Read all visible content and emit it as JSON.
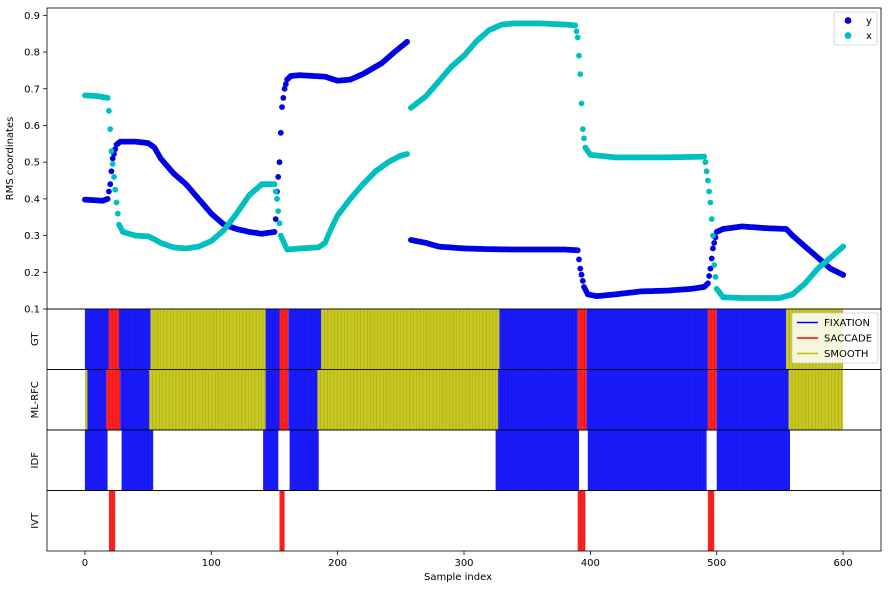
{
  "chart_data": {
    "type": "scatter",
    "xlabel": "Sample index",
    "xlim": [
      -30,
      630
    ],
    "x_ticks": [
      0,
      100,
      200,
      300,
      400,
      500,
      600
    ],
    "top_panel": {
      "ylabel": "RMS coordinates",
      "ylim": [
        0.1,
        0.92
      ],
      "y_ticks": [
        "0.1",
        "0.2",
        "0.3",
        "0.4",
        "0.5",
        "0.6",
        "0.7",
        "0.8",
        "0.9"
      ],
      "legend_position": "top-right",
      "series": [
        {
          "name": "y",
          "color": "#0000e6",
          "anchors": [
            [
              0,
              0.398
            ],
            [
              14,
              0.395
            ],
            [
              18,
              0.4
            ],
            [
              20,
              0.44
            ],
            [
              22,
              0.51
            ],
            [
              25,
              0.548
            ],
            [
              28,
              0.556
            ],
            [
              40,
              0.556
            ],
            [
              50,
              0.552
            ],
            [
              55,
              0.54
            ],
            [
              60,
              0.51
            ],
            [
              70,
              0.47
            ],
            [
              80,
              0.44
            ],
            [
              90,
              0.4
            ],
            [
              100,
              0.36
            ],
            [
              110,
              0.33
            ],
            [
              120,
              0.318
            ],
            [
              130,
              0.31
            ],
            [
              140,
              0.305
            ],
            [
              150,
              0.31
            ],
            [
              151,
              0.345
            ],
            [
              152,
              0.42
            ],
            [
              154,
              0.5
            ],
            [
              155,
              0.58
            ],
            [
              156,
              0.65
            ],
            [
              158,
              0.7
            ],
            [
              160,
              0.725
            ],
            [
              163,
              0.735
            ],
            [
              170,
              0.737
            ],
            [
              190,
              0.733
            ],
            [
              200,
              0.722
            ],
            [
              210,
              0.725
            ],
            [
              220,
              0.74
            ],
            [
              235,
              0.77
            ],
            [
              245,
              0.8
            ],
            [
              255,
              0.828
            ],
            [
              256,
              0.83
            ],
            [
              257,
              null
            ],
            [
              258,
              0.288
            ],
            [
              270,
              0.28
            ],
            [
              280,
              0.27
            ],
            [
              300,
              0.265
            ],
            [
              320,
              0.263
            ],
            [
              340,
              0.262
            ],
            [
              360,
              0.262
            ],
            [
              380,
              0.262
            ],
            [
              390,
              0.26
            ],
            [
              392,
              0.21
            ],
            [
              395,
              0.16
            ],
            [
              398,
              0.14
            ],
            [
              405,
              0.135
            ],
            [
              420,
              0.14
            ],
            [
              440,
              0.148
            ],
            [
              460,
              0.15
            ],
            [
              480,
              0.155
            ],
            [
              490,
              0.16
            ],
            [
              493,
              0.17
            ],
            [
              495,
              0.21
            ],
            [
              497,
              0.265
            ],
            [
              500,
              0.31
            ],
            [
              505,
              0.318
            ],
            [
              520,
              0.325
            ],
            [
              540,
              0.32
            ],
            [
              555,
              0.318
            ],
            [
              560,
              0.3
            ],
            [
              570,
              0.27
            ],
            [
              580,
              0.24
            ],
            [
              590,
              0.21
            ],
            [
              600,
              0.193
            ]
          ]
        },
        {
          "name": "x",
          "color": "#00bfbf",
          "anchors": [
            [
              0,
              0.682
            ],
            [
              10,
              0.68
            ],
            [
              18,
              0.675
            ],
            [
              19,
              0.64
            ],
            [
              20,
              0.59
            ],
            [
              21,
              0.53
            ],
            [
              23,
              0.46
            ],
            [
              25,
              0.39
            ],
            [
              27,
              0.33
            ],
            [
              30,
              0.31
            ],
            [
              40,
              0.3
            ],
            [
              50,
              0.298
            ],
            [
              55,
              0.29
            ],
            [
              60,
              0.28
            ],
            [
              70,
              0.268
            ],
            [
              80,
              0.265
            ],
            [
              90,
              0.27
            ],
            [
              100,
              0.285
            ],
            [
              110,
              0.315
            ],
            [
              120,
              0.36
            ],
            [
              130,
              0.41
            ],
            [
              140,
              0.44
            ],
            [
              150,
              0.44
            ],
            [
              152,
              0.4
            ],
            [
              155,
              0.3
            ],
            [
              160,
              0.262
            ],
            [
              170,
              0.265
            ],
            [
              185,
              0.268
            ],
            [
              190,
              0.28
            ],
            [
              195,
              0.32
            ],
            [
              200,
              0.355
            ],
            [
              210,
              0.4
            ],
            [
              220,
              0.44
            ],
            [
              230,
              0.475
            ],
            [
              240,
              0.5
            ],
            [
              250,
              0.518
            ],
            [
              256,
              0.523
            ],
            [
              257,
              null
            ],
            [
              258,
              0.648
            ],
            [
              270,
              0.68
            ],
            [
              280,
              0.72
            ],
            [
              290,
              0.76
            ],
            [
              300,
              0.79
            ],
            [
              310,
              0.83
            ],
            [
              320,
              0.86
            ],
            [
              330,
              0.875
            ],
            [
              340,
              0.878
            ],
            [
              360,
              0.878
            ],
            [
              380,
              0.875
            ],
            [
              388,
              0.873
            ],
            [
              390,
              0.84
            ],
            [
              392,
              0.74
            ],
            [
              393,
              0.66
            ],
            [
              394,
              0.59
            ],
            [
              396,
              0.54
            ],
            [
              400,
              0.52
            ],
            [
              420,
              0.513
            ],
            [
              460,
              0.513
            ],
            [
              490,
              0.515
            ],
            [
              491,
              0.5
            ],
            [
              493,
              0.45
            ],
            [
              495,
              0.39
            ],
            [
              497,
              0.3
            ],
            [
              498,
              0.22
            ],
            [
              500,
              0.155
            ],
            [
              505,
              0.132
            ],
            [
              520,
              0.13
            ],
            [
              550,
              0.13
            ],
            [
              560,
              0.14
            ],
            [
              570,
              0.17
            ],
            [
              580,
              0.21
            ],
            [
              590,
              0.24
            ],
            [
              600,
              0.27
            ]
          ]
        }
      ]
    },
    "event_panels": [
      {
        "ylabel": "GT",
        "segments": [
          [
            0,
            19,
            "FIXATION"
          ],
          [
            19,
            27,
            "SACCADE"
          ],
          [
            27,
            52,
            "FIXATION"
          ],
          [
            52,
            143,
            "SMOOTH"
          ],
          [
            143,
            154,
            "FIXATION"
          ],
          [
            154,
            161,
            "SACCADE"
          ],
          [
            161,
            187,
            "FIXATION"
          ],
          [
            187,
            328,
            "SMOOTH"
          ],
          [
            328,
            390,
            "FIXATION"
          ],
          [
            390,
            397,
            "SACCADE"
          ],
          [
            397,
            493,
            "FIXATION"
          ],
          [
            493,
            500,
            "SACCADE"
          ],
          [
            500,
            555,
            "FIXATION"
          ],
          [
            555,
            600,
            "SMOOTH"
          ]
        ]
      },
      {
        "ylabel": "ML-RFC",
        "segments": [
          [
            0,
            2,
            "SMOOTH"
          ],
          [
            2,
            17,
            "FIXATION"
          ],
          [
            17,
            28,
            "SACCADE"
          ],
          [
            28,
            51,
            "FIXATION"
          ],
          [
            51,
            143,
            "SMOOTH"
          ],
          [
            143,
            154,
            "FIXATION"
          ],
          [
            154,
            161,
            "SACCADE"
          ],
          [
            161,
            184,
            "FIXATION"
          ],
          [
            184,
            327,
            "SMOOTH"
          ],
          [
            327,
            390,
            "FIXATION"
          ],
          [
            390,
            397,
            "SACCADE"
          ],
          [
            397,
            493,
            "FIXATION"
          ],
          [
            493,
            500,
            "SACCADE"
          ],
          [
            500,
            557,
            "FIXATION"
          ],
          [
            557,
            600,
            "SMOOTH"
          ]
        ]
      },
      {
        "ylabel": "IDF",
        "segments": [
          [
            0,
            18,
            "FIXATION"
          ],
          [
            29,
            54,
            "FIXATION"
          ],
          [
            141,
            153,
            "FIXATION"
          ],
          [
            162,
            185,
            "FIXATION"
          ],
          [
            325,
            391,
            "FIXATION"
          ],
          [
            398,
            492,
            "FIXATION"
          ],
          [
            500,
            558,
            "FIXATION"
          ]
        ]
      },
      {
        "ylabel": "IVT",
        "segments": [
          [
            19,
            24,
            "SACCADE"
          ],
          [
            154,
            158,
            "SACCADE"
          ],
          [
            390,
            396,
            "SACCADE"
          ],
          [
            493,
            498,
            "SACCADE"
          ]
        ]
      }
    ],
    "event_legend": {
      "position": "top-right",
      "entries": [
        {
          "label": "FIXATION",
          "color": "#0000ff"
        },
        {
          "label": "SACCADE",
          "color": "#ff0000"
        },
        {
          "label": "SMOOTH",
          "color": "#bfbf00"
        }
      ]
    },
    "event_fill_colors": {
      "FIXATION": "#1a1aff",
      "SACCADE": "#ff2020",
      "SMOOTH": "#c8c820"
    }
  }
}
